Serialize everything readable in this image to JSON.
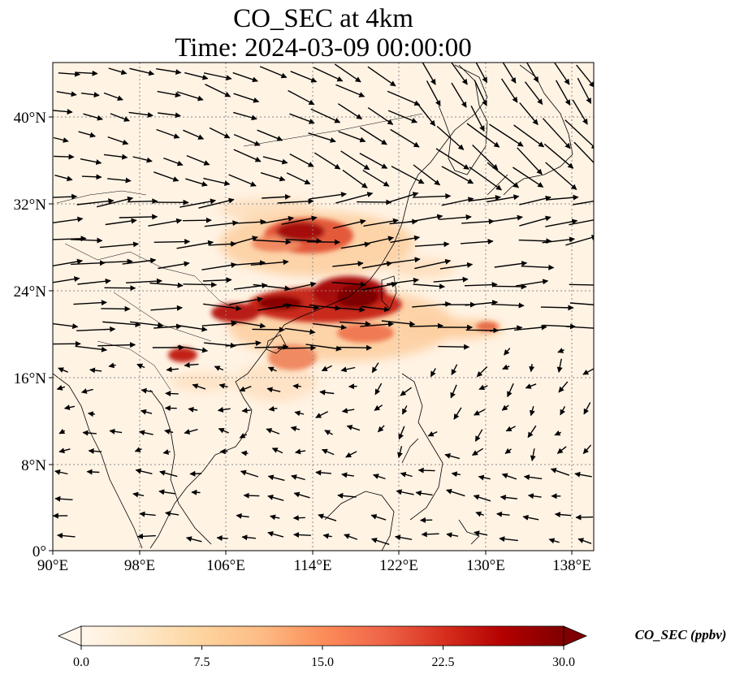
{
  "title": {
    "line1": "CO_SEC at 4km",
    "line2": "Time: 2024-03-09 00:00:00"
  },
  "map": {
    "lon_range": [
      90,
      140
    ],
    "lat_range": [
      0,
      45
    ],
    "x_ticks": [
      "90°E",
      "98°E",
      "106°E",
      "114°E",
      "122°E",
      "130°E",
      "138°E"
    ],
    "y_ticks": [
      "0°",
      "8°N",
      "16°N",
      "24°N",
      "32°N",
      "40°N"
    ],
    "gridlines": true,
    "grid_style": "dotted",
    "field_colormap": "OrRd",
    "vectors": "wind arrows"
  },
  "colorbar": {
    "label": "CO_SEC (ppbv)",
    "ticks": [
      "0.0",
      "7.5",
      "15.0",
      "22.5",
      "30.0"
    ],
    "min": 0,
    "max": 30,
    "extend": "both",
    "colors": [
      "#fff7ec",
      "#fee8c8",
      "#fdd49e",
      "#fdbb84",
      "#fc8d59",
      "#ef6548",
      "#d7301f",
      "#b30000",
      "#7f0000"
    ]
  },
  "colors": {
    "background_field": "#fff3e4",
    "coastline": "#000000",
    "gridline": "#8a8a8a",
    "arrow": "#000000"
  }
}
